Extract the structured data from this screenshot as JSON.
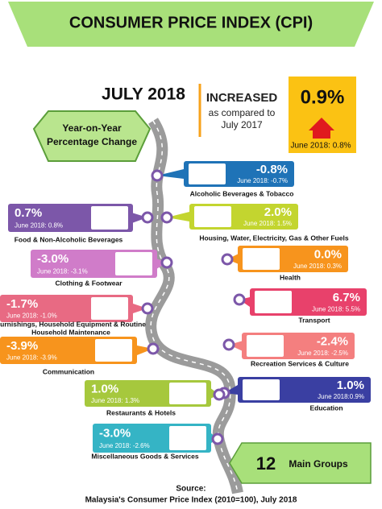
{
  "header": {
    "title": "CONSUMER PRICE INDEX (CPI)"
  },
  "period": "JULY 2018",
  "summary": {
    "status": "INCREASED",
    "comparison": "as compared to",
    "base": "July 2017",
    "value": "0.9%",
    "previous": "June 2018: 0.8%"
  },
  "subtitle": [
    "Year-on-Year",
    "Percentage Change"
  ],
  "groups": [
    {
      "label": "Alcoholic Beverages & Tobacco",
      "value": "-0.8%",
      "previous": "June 2018:  -0.7%"
    },
    {
      "label": "Housing, Water, Electricity, Gas & Other Fuels",
      "value": "2.0%",
      "previous": "June 2018:  1.5%"
    },
    {
      "label": "Health",
      "value": "0.0%",
      "previous": "June 2018:  0.3%"
    },
    {
      "label": "Transport",
      "value": "6.7%",
      "previous": "June 2018:  5.5%"
    },
    {
      "label": "Recreation Services & Culture",
      "value": "-2.4%",
      "previous": "June 2018:  -2.5%"
    },
    {
      "label": "Education",
      "value": "1.0%",
      "previous": "June 2018:0.9%"
    },
    {
      "label": "Food & Non-Alcoholic Beverages",
      "value": "0.7%",
      "previous": "June 2018:  0.8%"
    },
    {
      "label": "Clothing & Footwear",
      "value": "-3.0%",
      "previous": "June 2018:  -3.1%"
    },
    {
      "label": [
        "Furnishings, Household Equipment & Routine",
        "Household Maintenance"
      ],
      "value": "-1.7%",
      "previous": "June 2018:  -1.0%"
    },
    {
      "label": "Communication",
      "value": "-3.9%",
      "previous": "June 2018:  -3.9%"
    },
    {
      "label": "Restaurants & Hotels",
      "value": "1.0%",
      "previous": "June 2018:  1.3%"
    },
    {
      "label": "Miscellaneous Goods & Services",
      "value": "-3.0%",
      "previous": "June 2018:  -2.6%"
    }
  ],
  "footer": {
    "count": "12",
    "count_label": "Main Groups",
    "source_title": "Source:",
    "source": "Malaysia's Consumer Price Index  (2010=100),   July 2018"
  }
}
